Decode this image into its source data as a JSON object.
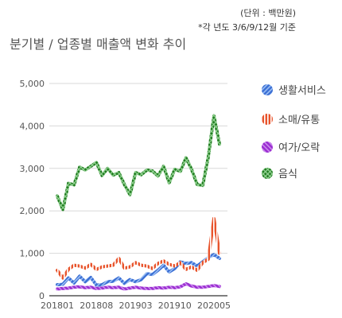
{
  "notes": {
    "unit": "(단위 : 백만원)",
    "basis": "*각 년도 3/6/9/12월 기준"
  },
  "chart_data": {
    "type": "line",
    "title": "분기별 / 업종별 매출액 변화 추이",
    "xlabel": "",
    "ylabel": "",
    "ylim": [
      0,
      5000
    ],
    "yticks": [
      0,
      1000,
      2000,
      3000,
      4000,
      5000
    ],
    "ytick_labels": [
      "0",
      "1,000",
      "2,000",
      "3,000",
      "4,000",
      "5,000"
    ],
    "x_tick_labels": [
      "201801",
      "201808",
      "201903",
      "201910",
      "202005"
    ],
    "grid": true,
    "legend_position": "right",
    "series": [
      {
        "name": "생활서비스",
        "color": "#3b6fd4",
        "values": [
          260,
          270,
          420,
          300,
          460,
          330,
          430,
          250,
          260,
          330,
          340,
          420,
          290,
          380,
          330,
          380,
          520,
          500,
          600,
          720,
          560,
          640,
          800,
          760,
          780,
          700,
          800,
          900,
          970,
          880
        ]
      },
      {
        "name": "소매/유통",
        "color": "#e8542c",
        "values": [
          600,
          420,
          620,
          720,
          700,
          650,
          740,
          620,
          680,
          700,
          720,
          880,
          650,
          680,
          780,
          720,
          700,
          640,
          760,
          820,
          740,
          700,
          780,
          620,
          680,
          600,
          780,
          860,
          1820,
          1000
        ]
      },
      {
        "name": "여가/오락",
        "color": "#9b2fd1",
        "values": [
          160,
          170,
          180,
          200,
          210,
          190,
          200,
          170,
          180,
          200,
          190,
          200,
          160,
          180,
          200,
          180,
          170,
          170,
          190,
          180,
          200,
          190,
          210,
          280,
          230,
          200,
          200,
          220,
          240,
          220
        ]
      },
      {
        "name": "음식",
        "color": "#1f7a1f",
        "values": [
          2350,
          2030,
          2650,
          2610,
          3030,
          2960,
          3050,
          3140,
          2830,
          3000,
          2840,
          2900,
          2620,
          2380,
          2900,
          2850,
          2960,
          2940,
          2820,
          3050,
          2660,
          2980,
          2930,
          3250,
          2980,
          2620,
          2600,
          3270,
          4240,
          3570
        ]
      }
    ]
  }
}
